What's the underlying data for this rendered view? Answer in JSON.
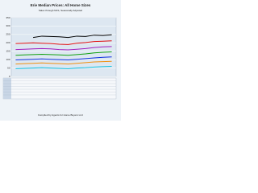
{
  "chart_data": {
    "type": "line",
    "title": "Erie Median Prices: All Home Sizes",
    "subtitle": "Sales through MLS, Seasonally Adjusted",
    "categories": [
      null,
      null,
      null,
      null,
      null,
      null,
      null,
      null,
      null,
      null,
      null,
      null
    ],
    "ylim": [
      0,
      350
    ],
    "yticks": [
      0,
      50,
      100,
      150,
      200,
      250,
      300,
      350
    ],
    "grid": true,
    "series": [
      {
        "color": "#000000",
        "values": [
          null,
          null,
          232,
          240,
          238,
          236,
          232,
          240,
          238,
          246,
          244,
          248
        ]
      },
      {
        "color": "#e01010",
        "values": [
          196,
          198,
          200,
          198,
          196,
          192,
          190,
          198,
          202,
          208,
          210,
          212
        ]
      },
      {
        "color": "#a020c0",
        "values": [
          160,
          162,
          164,
          166,
          164,
          160,
          158,
          162,
          166,
          172,
          176,
          178
        ]
      },
      {
        "color": "#10a010",
        "values": [
          126,
          128,
          130,
          132,
          130,
          128,
          126,
          130,
          134,
          140,
          144,
          146
        ]
      },
      {
        "color": "#1030e0",
        "values": [
          98,
          100,
          102,
          104,
          102,
          100,
          98,
          102,
          106,
          110,
          114,
          116
        ]
      },
      {
        "color": "#f09010",
        "values": [
          74,
          76,
          78,
          80,
          78,
          76,
          74,
          78,
          82,
          86,
          88,
          90
        ]
      },
      {
        "color": "#10c0e0",
        "values": [
          46,
          48,
          50,
          52,
          50,
          48,
          46,
          50,
          52,
          56,
          58,
          60
        ]
      }
    ],
    "footer": "Compiled by Agents for Home Buyers LLC"
  }
}
